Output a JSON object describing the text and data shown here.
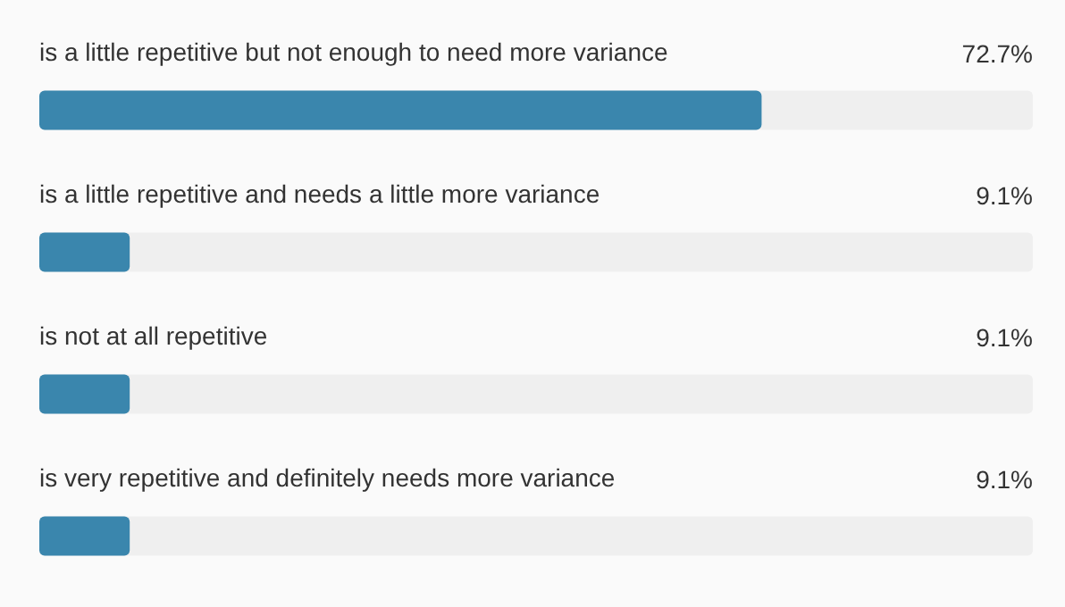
{
  "chart_data": {
    "type": "bar",
    "orientation": "horizontal",
    "categories": [
      "is a little repetitive but not enough to need more variance",
      "is a little repetitive and needs a little more variance",
      "is not at all repetitive",
      "is very repetitive and definitely needs more variance"
    ],
    "values": [
      72.7,
      9.1,
      9.1,
      9.1
    ],
    "value_labels": [
      "72.7%",
      "9.1%",
      "9.1%",
      "9.1%"
    ],
    "color": "#3a86ad",
    "xlim": [
      0,
      100
    ],
    "tick_labels": "y"
  }
}
